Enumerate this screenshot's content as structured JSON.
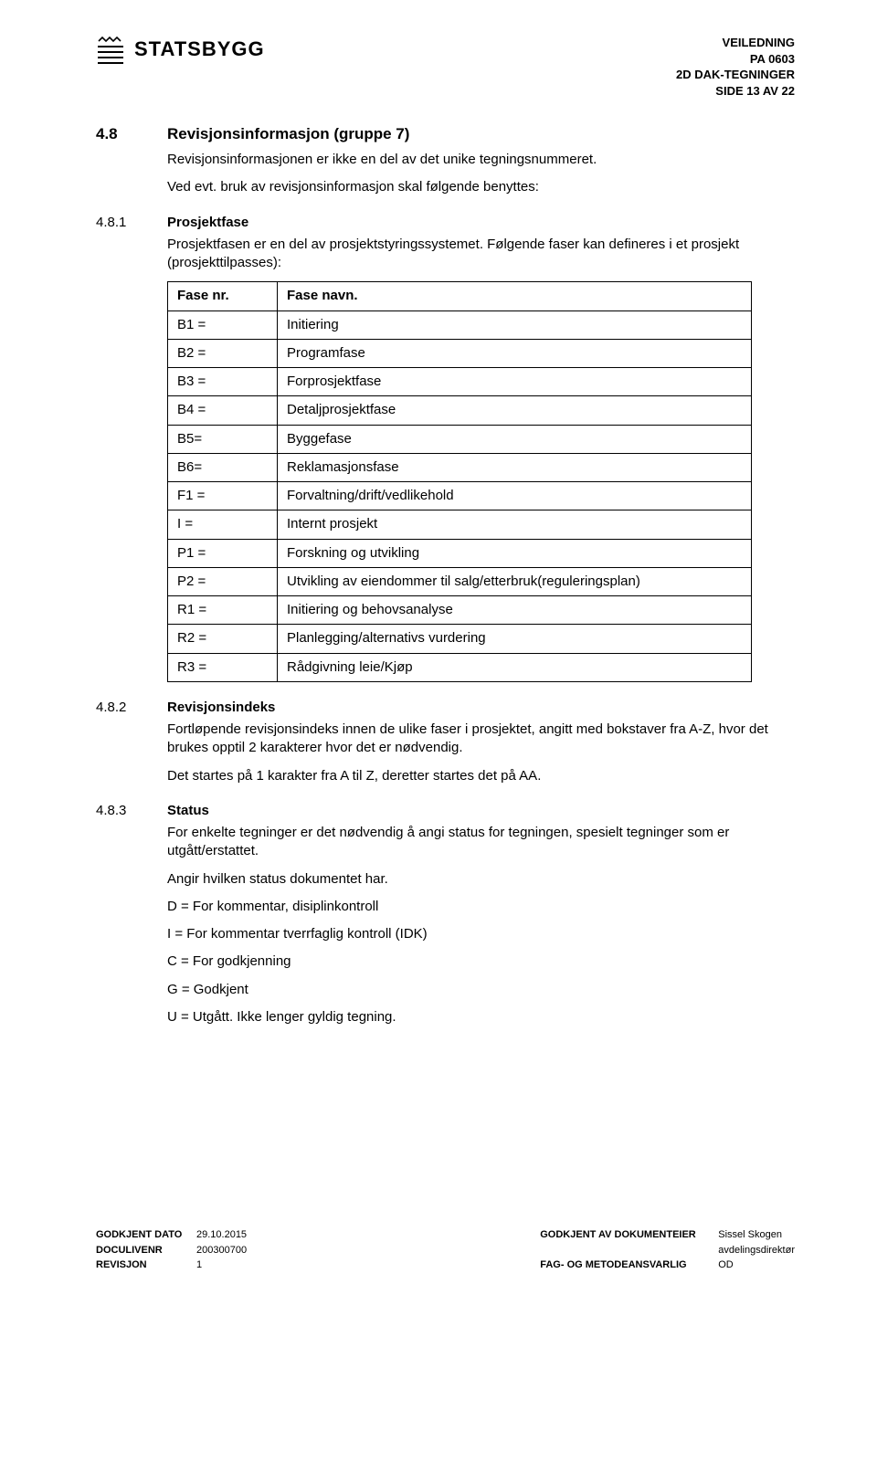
{
  "header": {
    "logo_text": "STATSBYGG",
    "right_lines": [
      "VEILEDNING",
      "PA 0603",
      "2D DAK-TEGNINGER",
      "SIDE 13 AV 22"
    ]
  },
  "s48": {
    "num": "4.8",
    "title": "Revisjonsinformasjon (gruppe 7)",
    "p1": "Revisjonsinformasjonen er ikke en del av det unike tegningsnummeret.",
    "p2": "Ved evt. bruk av revisjonsinformasjon skal følgende benyttes:"
  },
  "s481": {
    "num": "4.8.1",
    "title": "Prosjektfase",
    "p1": "Prosjektfasen er en del av prosjektstyringssystemet. Følgende faser kan defineres i et prosjekt (prosjekttilpasses):",
    "table_header": [
      "Fase nr.",
      "Fase navn."
    ],
    "rows": [
      [
        "B1 =",
        "Initiering"
      ],
      [
        "B2 =",
        "Programfase"
      ],
      [
        "B3 =",
        "Forprosjektfase"
      ],
      [
        "B4 =",
        "Detaljprosjektfase"
      ],
      [
        "B5=",
        "Byggefase"
      ],
      [
        "B6=",
        "Reklamasjonsfase"
      ],
      [
        "F1 =",
        "Forvaltning/drift/vedlikehold"
      ],
      [
        "I =",
        "Internt prosjekt"
      ],
      [
        "P1 =",
        "Forskning og utvikling"
      ],
      [
        "P2 =",
        "Utvikling av eiendommer til salg/etterbruk(reguleringsplan)"
      ],
      [
        "R1 =",
        "Initiering og behovsanalyse"
      ],
      [
        "R2 =",
        "Planlegging/alternativs vurdering"
      ],
      [
        "R3 =",
        "Rådgivning leie/Kjøp"
      ]
    ]
  },
  "s482": {
    "num": "4.8.2",
    "title": "Revisjonsindeks",
    "p1": "Fortløpende revisjonsindeks innen de ulike faser i prosjektet, angitt med bokstaver fra A-Z, hvor det brukes opptil 2 karakterer hvor det er nødvendig.",
    "p2": "Det startes på 1 karakter fra A til Z, deretter startes det på AA."
  },
  "s483": {
    "num": "4.8.3",
    "title": "Status",
    "p1": "For enkelte tegninger er det nødvendig å angi status for tegningen, spesielt tegninger som er utgått/erstattet.",
    "p2": "Angir hvilken status dokumentet har.",
    "list": [
      "D = For kommentar, disiplinkontroll",
      "I = For kommentar tverrfaglig kontroll (IDK)",
      "C = For godkjenning",
      "G = Godkjent",
      "U = Utgått. Ikke lenger gyldig tegning."
    ]
  },
  "footer": {
    "left": [
      {
        "label": "GODKJENT DATO",
        "value": "29.10.2015"
      },
      {
        "label": "DOCULIVENR",
        "value": "200300700"
      },
      {
        "label": "REVISJON",
        "value": "1"
      }
    ],
    "right": [
      {
        "label": "GODKJENT AV DOKUMENTEIER",
        "value": "Sissel Skogen"
      },
      {
        "label": "",
        "value": "avdelingsdirektør"
      },
      {
        "label": "FAG- OG METODEANSVARLIG",
        "value": "OD"
      }
    ]
  }
}
